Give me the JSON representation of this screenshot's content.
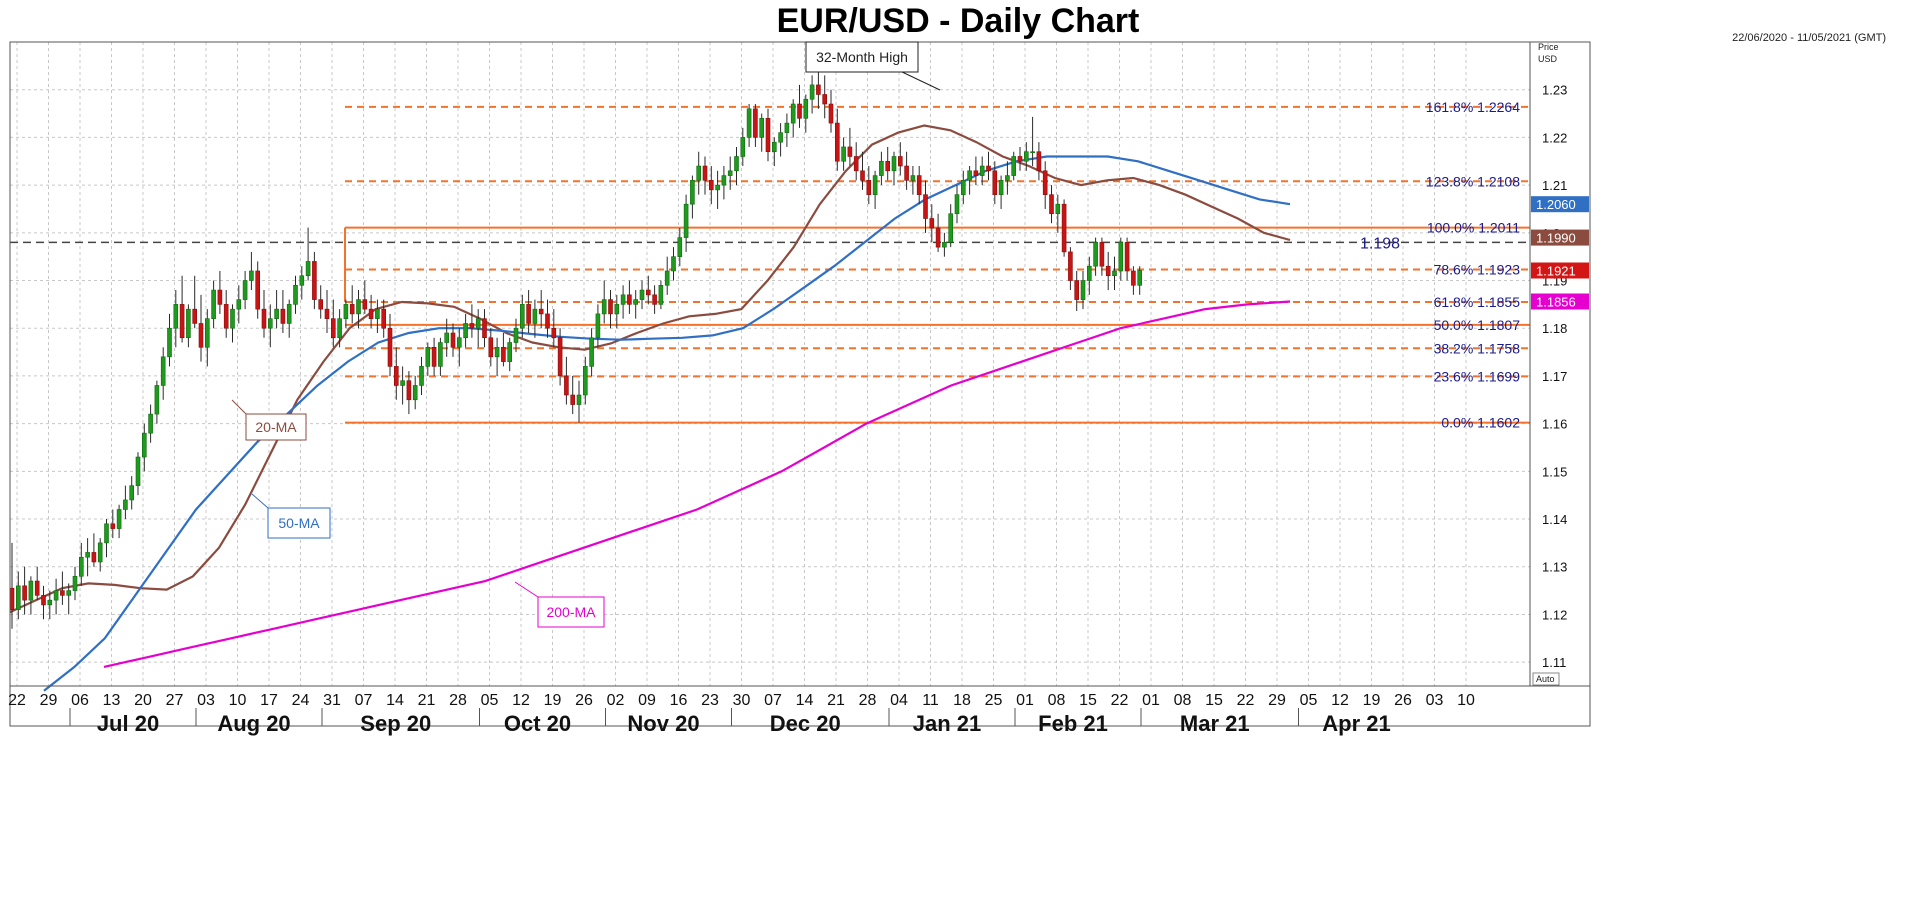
{
  "chart_data": {
    "type": "candlestick",
    "title": "EUR/USD - Daily Chart",
    "date_range": "22/06/2020 - 11/05/2021 (GMT)",
    "y_axis": {
      "label_line1": "Price",
      "label_line2": "USD",
      "ylim": [
        1.105,
        1.24
      ],
      "ticks": [
        "1.23",
        "1.22",
        "1.21",
        "1.2",
        "1.19",
        "1.18",
        "1.17",
        "1.16",
        "1.15",
        "1.14",
        "1.13",
        "1.12",
        "1.11"
      ],
      "tick_values": [
        1.23,
        1.22,
        1.21,
        1.2,
        1.19,
        1.18,
        1.17,
        1.16,
        1.15,
        1.14,
        1.13,
        1.12,
        1.11
      ],
      "auto_label": "Auto"
    },
    "x_axis": {
      "week_labels": [
        "22",
        "29",
        "06",
        "13",
        "20",
        "27",
        "03",
        "10",
        "17",
        "24",
        "31",
        "07",
        "14",
        "21",
        "28",
        "05",
        "12",
        "19",
        "26",
        "02",
        "09",
        "16",
        "23",
        "30",
        "07",
        "14",
        "21",
        "28",
        "04",
        "11",
        "18",
        "25",
        "01",
        "08",
        "15",
        "22",
        "01",
        "08",
        "15",
        "22",
        "29",
        "05",
        "12",
        "19",
        "26",
        "03",
        "10"
      ],
      "month_labels": [
        "Jul 20",
        "Aug 20",
        "Sep 20",
        "Oct 20",
        "Nov 20",
        "Dec 20",
        "Jan 21",
        "Feb 21",
        "Mar 21",
        "Apr 21"
      ]
    },
    "candles": [
      [
        1.1255,
        1.135,
        1.117,
        1.121
      ],
      [
        1.121,
        1.129,
        1.119,
        1.126
      ],
      [
        1.126,
        1.13,
        1.12,
        1.123
      ],
      [
        1.123,
        1.128,
        1.12,
        1.127
      ],
      [
        1.127,
        1.13,
        1.123,
        1.124
      ],
      [
        1.124,
        1.126,
        1.119,
        1.122
      ],
      [
        1.122,
        1.125,
        1.119,
        1.123
      ],
      [
        1.123,
        1.1275,
        1.12,
        1.125
      ],
      [
        1.125,
        1.129,
        1.122,
        1.124
      ],
      [
        1.124,
        1.1265,
        1.12,
        1.125
      ],
      [
        1.125,
        1.13,
        1.123,
        1.128
      ],
      [
        1.128,
        1.135,
        1.126,
        1.132
      ],
      [
        1.132,
        1.136,
        1.128,
        1.133
      ],
      [
        1.133,
        1.137,
        1.13,
        1.131
      ],
      [
        1.131,
        1.136,
        1.129,
        1.135
      ],
      [
        1.135,
        1.14,
        1.132,
        1.139
      ],
      [
        1.139,
        1.142,
        1.136,
        1.138
      ],
      [
        1.138,
        1.143,
        1.136,
        1.142
      ],
      [
        1.142,
        1.147,
        1.14,
        1.144
      ],
      [
        1.144,
        1.149,
        1.142,
        1.147
      ],
      [
        1.147,
        1.154,
        1.145,
        1.153
      ],
      [
        1.153,
        1.16,
        1.15,
        1.158
      ],
      [
        1.158,
        1.164,
        1.156,
        1.162
      ],
      [
        1.162,
        1.169,
        1.16,
        1.168
      ],
      [
        1.168,
        1.176,
        1.165,
        1.174
      ],
      [
        1.174,
        1.183,
        1.172,
        1.18
      ],
      [
        1.18,
        1.188,
        1.176,
        1.185
      ],
      [
        1.185,
        1.191,
        1.177,
        1.178
      ],
      [
        1.178,
        1.185,
        1.176,
        1.184
      ],
      [
        1.184,
        1.191,
        1.18,
        1.181
      ],
      [
        1.181,
        1.187,
        1.173,
        1.176
      ],
      [
        1.176,
        1.184,
        1.172,
        1.182
      ],
      [
        1.182,
        1.19,
        1.18,
        1.188
      ],
      [
        1.188,
        1.192,
        1.183,
        1.185
      ],
      [
        1.185,
        1.188,
        1.178,
        1.18
      ],
      [
        1.18,
        1.185,
        1.177,
        1.184
      ],
      [
        1.184,
        1.189,
        1.181,
        1.186
      ],
      [
        1.186,
        1.192,
        1.184,
        1.19
      ],
      [
        1.19,
        1.196,
        1.188,
        1.192
      ],
      [
        1.192,
        1.194,
        1.182,
        1.184
      ],
      [
        1.184,
        1.188,
        1.178,
        1.18
      ],
      [
        1.18,
        1.185,
        1.176,
        1.182
      ],
      [
        1.182,
        1.188,
        1.18,
        1.184
      ],
      [
        1.184,
        1.188,
        1.179,
        1.181
      ],
      [
        1.181,
        1.186,
        1.178,
        1.185
      ],
      [
        1.185,
        1.191,
        1.183,
        1.189
      ],
      [
        1.189,
        1.193,
        1.186,
        1.191
      ],
      [
        1.191,
        1.2011,
        1.19,
        1.194
      ],
      [
        1.194,
        1.196,
        1.184,
        1.186
      ],
      [
        1.186,
        1.189,
        1.182,
        1.184
      ],
      [
        1.184,
        1.188,
        1.179,
        1.182
      ],
      [
        1.182,
        1.186,
        1.176,
        1.178
      ],
      [
        1.178,
        1.184,
        1.176,
        1.182
      ],
      [
        1.182,
        1.186,
        1.18,
        1.185
      ],
      [
        1.185,
        1.189,
        1.181,
        1.183
      ],
      [
        1.183,
        1.188,
        1.18,
        1.186
      ],
      [
        1.186,
        1.19,
        1.183,
        1.184
      ],
      [
        1.184,
        1.187,
        1.18,
        1.182
      ],
      [
        1.182,
        1.186,
        1.179,
        1.184
      ],
      [
        1.184,
        1.186,
        1.178,
        1.18
      ],
      [
        1.18,
        1.183,
        1.17,
        1.172
      ],
      [
        1.172,
        1.176,
        1.165,
        1.168
      ],
      [
        1.168,
        1.172,
        1.164,
        1.169
      ],
      [
        1.169,
        1.171,
        1.162,
        1.165
      ],
      [
        1.165,
        1.17,
        1.163,
        1.168
      ],
      [
        1.168,
        1.174,
        1.166,
        1.172
      ],
      [
        1.172,
        1.177,
        1.17,
        1.176
      ],
      [
        1.176,
        1.178,
        1.17,
        1.172
      ],
      [
        1.172,
        1.178,
        1.17,
        1.177
      ],
      [
        1.177,
        1.182,
        1.174,
        1.179
      ],
      [
        1.179,
        1.181,
        1.174,
        1.176
      ],
      [
        1.176,
        1.18,
        1.172,
        1.178
      ],
      [
        1.178,
        1.183,
        1.176,
        1.181
      ],
      [
        1.181,
        1.185,
        1.178,
        1.18
      ],
      [
        1.18,
        1.184,
        1.176,
        1.182
      ],
      [
        1.182,
        1.184,
        1.176,
        1.178
      ],
      [
        1.178,
        1.18,
        1.172,
        1.174
      ],
      [
        1.174,
        1.178,
        1.17,
        1.176
      ],
      [
        1.176,
        1.179,
        1.172,
        1.173
      ],
      [
        1.173,
        1.178,
        1.171,
        1.177
      ],
      [
        1.177,
        1.182,
        1.175,
        1.18
      ],
      [
        1.18,
        1.187,
        1.178,
        1.185
      ],
      [
        1.185,
        1.188,
        1.179,
        1.181
      ],
      [
        1.181,
        1.186,
        1.178,
        1.184
      ],
      [
        1.184,
        1.188,
        1.18,
        1.183
      ],
      [
        1.183,
        1.186,
        1.178,
        1.18
      ],
      [
        1.18,
        1.184,
        1.176,
        1.178
      ],
      [
        1.178,
        1.18,
        1.168,
        1.17
      ],
      [
        1.17,
        1.174,
        1.164,
        1.166
      ],
      [
        1.166,
        1.17,
        1.162,
        1.164
      ],
      [
        1.164,
        1.169,
        1.1602,
        1.166
      ],
      [
        1.166,
        1.174,
        1.164,
        1.172
      ],
      [
        1.172,
        1.18,
        1.17,
        1.178
      ],
      [
        1.178,
        1.185,
        1.176,
        1.183
      ],
      [
        1.183,
        1.19,
        1.181,
        1.186
      ],
      [
        1.186,
        1.188,
        1.18,
        1.183
      ],
      [
        1.183,
        1.187,
        1.18,
        1.185
      ],
      [
        1.185,
        1.189,
        1.182,
        1.187
      ],
      [
        1.187,
        1.19,
        1.183,
        1.185
      ],
      [
        1.185,
        1.188,
        1.182,
        1.186
      ],
      [
        1.186,
        1.19,
        1.184,
        1.188
      ],
      [
        1.188,
        1.191,
        1.185,
        1.187
      ],
      [
        1.187,
        1.189,
        1.183,
        1.185
      ],
      [
        1.185,
        1.19,
        1.184,
        1.189
      ],
      [
        1.189,
        1.195,
        1.187,
        1.192
      ],
      [
        1.192,
        1.197,
        1.19,
        1.195
      ],
      [
        1.195,
        1.201,
        1.193,
        1.199
      ],
      [
        1.199,
        1.208,
        1.196,
        1.206
      ],
      [
        1.206,
        1.212,
        1.203,
        1.211
      ],
      [
        1.211,
        1.217,
        1.208,
        1.214
      ],
      [
        1.214,
        1.216,
        1.208,
        1.211
      ],
      [
        1.211,
        1.214,
        1.206,
        1.209
      ],
      [
        1.209,
        1.213,
        1.205,
        1.21
      ],
      [
        1.21,
        1.214,
        1.207,
        1.212
      ],
      [
        1.212,
        1.216,
        1.209,
        1.213
      ],
      [
        1.213,
        1.218,
        1.21,
        1.216
      ],
      [
        1.216,
        1.222,
        1.214,
        1.22
      ],
      [
        1.22,
        1.227,
        1.218,
        1.226
      ],
      [
        1.226,
        1.227,
        1.218,
        1.22
      ],
      [
        1.22,
        1.225,
        1.217,
        1.224
      ],
      [
        1.224,
        1.226,
        1.215,
        1.217
      ],
      [
        1.217,
        1.22,
        1.214,
        1.219
      ],
      [
        1.219,
        1.223,
        1.216,
        1.221
      ],
      [
        1.221,
        1.225,
        1.218,
        1.223
      ],
      [
        1.223,
        1.228,
        1.22,
        1.227
      ],
      [
        1.227,
        1.231,
        1.222,
        1.224
      ],
      [
        1.224,
        1.229,
        1.221,
        1.228
      ],
      [
        1.228,
        1.233,
        1.225,
        1.231
      ],
      [
        1.231,
        1.235,
        1.226,
        1.229
      ],
      [
        1.229,
        1.233,
        1.224,
        1.227
      ],
      [
        1.227,
        1.23,
        1.221,
        1.223
      ],
      [
        1.223,
        1.226,
        1.213,
        1.215
      ],
      [
        1.215,
        1.22,
        1.213,
        1.218
      ],
      [
        1.218,
        1.222,
        1.214,
        1.216
      ],
      [
        1.216,
        1.219,
        1.211,
        1.213
      ],
      [
        1.213,
        1.217,
        1.209,
        1.211
      ],
      [
        1.211,
        1.214,
        1.206,
        1.208
      ],
      [
        1.208,
        1.213,
        1.205,
        1.212
      ],
      [
        1.212,
        1.217,
        1.21,
        1.215
      ],
      [
        1.215,
        1.218,
        1.211,
        1.213
      ],
      [
        1.213,
        1.217,
        1.21,
        1.216
      ],
      [
        1.216,
        1.219,
        1.212,
        1.214
      ],
      [
        1.214,
        1.217,
        1.209,
        1.211
      ],
      [
        1.211,
        1.214,
        1.208,
        1.212
      ],
      [
        1.212,
        1.214,
        1.206,
        1.208
      ],
      [
        1.208,
        1.211,
        1.2,
        1.203
      ],
      [
        1.203,
        1.206,
        1.198,
        1.201
      ],
      [
        1.201,
        1.204,
        1.196,
        1.197
      ],
      [
        1.197,
        1.2,
        1.195,
        1.198
      ],
      [
        1.198,
        1.206,
        1.197,
        1.204
      ],
      [
        1.204,
        1.21,
        1.202,
        1.208
      ],
      [
        1.208,
        1.213,
        1.206,
        1.211
      ],
      [
        1.211,
        1.214,
        1.208,
        1.213
      ],
      [
        1.213,
        1.216,
        1.21,
        1.212
      ],
      [
        1.212,
        1.216,
        1.21,
        1.214
      ],
      [
        1.214,
        1.217,
        1.211,
        1.213
      ],
      [
        1.213,
        1.215,
        1.206,
        1.208
      ],
      [
        1.208,
        1.212,
        1.205,
        1.211
      ],
      [
        1.211,
        1.215,
        1.208,
        1.212
      ],
      [
        1.212,
        1.217,
        1.211,
        1.216
      ],
      [
        1.216,
        1.218,
        1.213,
        1.215
      ],
      [
        1.215,
        1.219,
        1.213,
        1.217
      ],
      [
        1.217,
        1.2243,
        1.214,
        1.217
      ],
      [
        1.217,
        1.219,
        1.211,
        1.213
      ],
      [
        1.213,
        1.215,
        1.205,
        1.208
      ],
      [
        1.208,
        1.21,
        1.202,
        1.204
      ],
      [
        1.204,
        1.208,
        1.2,
        1.206
      ],
      [
        1.206,
        1.207,
        1.195,
        1.196
      ],
      [
        1.196,
        1.197,
        1.188,
        1.19
      ],
      [
        1.19,
        1.192,
        1.1836,
        1.186
      ],
      [
        1.186,
        1.192,
        1.184,
        1.19
      ],
      [
        1.19,
        1.195,
        1.187,
        1.193
      ],
      [
        1.193,
        1.199,
        1.191,
        1.198
      ],
      [
        1.198,
        1.199,
        1.191,
        1.193
      ],
      [
        1.193,
        1.196,
        1.188,
        1.191
      ],
      [
        1.191,
        1.195,
        1.188,
        1.192
      ],
      [
        1.192,
        1.199,
        1.19,
        1.198
      ],
      [
        1.198,
        1.199,
        1.19,
        1.192
      ],
      [
        1.192,
        1.193,
        1.187,
        1.189
      ],
      [
        1.189,
        1.193,
        1.187,
        1.1921
      ]
    ],
    "candle_colors": {
      "up": "#1f9a1f",
      "down": "#c81414",
      "wick": "#2a2a2a"
    },
    "moving_averages": [
      {
        "name": "20-MA",
        "color": "#8b4c3f",
        "values": [
          1.1205,
          1.123,
          1.1255,
          1.1265,
          1.1262,
          1.1255,
          1.1252,
          1.128,
          1.134,
          1.143,
          1.154,
          1.165,
          1.173,
          1.18,
          1.184,
          1.1855,
          1.1852,
          1.1845,
          1.182,
          1.179,
          1.177,
          1.176,
          1.1755,
          1.1768,
          1.179,
          1.181,
          1.1825,
          1.183,
          1.184,
          1.19,
          1.197,
          1.206,
          1.213,
          1.2185,
          1.221,
          1.2225,
          1.2215,
          1.219,
          1.216,
          1.214,
          1.2115,
          1.21,
          1.211,
          1.2115,
          1.21,
          1.208,
          1.2055,
          1.203,
          1.2,
          1.1985
        ]
      },
      {
        "name": "50-MA",
        "color": "#2f6fc4",
        "values": [
          1.104,
          1.109,
          1.115,
          1.124,
          1.133,
          1.142,
          1.149,
          1.156,
          1.162,
          1.168,
          1.173,
          1.177,
          1.179,
          1.18,
          1.18,
          1.1795,
          1.1788,
          1.1782,
          1.1778,
          1.1776,
          1.1778,
          1.178,
          1.1785,
          1.18,
          1.184,
          1.1885,
          1.193,
          1.198,
          1.203,
          1.207,
          1.21,
          1.213,
          1.215,
          1.216,
          1.216,
          1.216,
          1.215,
          1.213,
          1.211,
          1.209,
          1.207,
          1.206
        ]
      },
      {
        "name": "200-MA",
        "color": "#e600cf",
        "values": [
          1.109,
          1.111,
          1.113,
          1.115,
          1.117,
          1.119,
          1.121,
          1.123,
          1.125,
          1.127,
          1.13,
          1.133,
          1.136,
          1.139,
          1.142,
          1.146,
          1.15,
          1.155,
          1.16,
          1.164,
          1.168,
          1.171,
          1.174,
          1.177,
          1.18,
          1.182,
          1.184,
          1.185,
          1.1856
        ]
      }
    ],
    "ma_labels": [
      "20-MA",
      "50-MA",
      "200-MA"
    ],
    "fib_levels": [
      {
        "label": "161.8%",
        "value": "1.2264",
        "v": 1.2264,
        "style": "dash"
      },
      {
        "label": "123.8%",
        "value": "1.2108",
        "v": 1.2108,
        "style": "dash"
      },
      {
        "label": "100.0%",
        "value": "1.2011",
        "v": 1.2011,
        "style": "solid"
      },
      {
        "label": "78.6%",
        "value": "1.1923",
        "v": 1.1923,
        "style": "dash"
      },
      {
        "label": "61.8%",
        "value": "1.1855",
        "v": 1.1855,
        "style": "dash"
      },
      {
        "label": "50.0%",
        "value": "1.1807",
        "v": 1.1807,
        "style": "solid"
      },
      {
        "label": "38.2%",
        "value": "1.1758",
        "v": 1.1758,
        "style": "dash"
      },
      {
        "label": "23.6%",
        "value": "1.1699",
        "v": 1.1699,
        "style": "dash"
      },
      {
        "label": "0.0%",
        "value": "1.1602",
        "v": 1.1602,
        "style": "solid"
      }
    ],
    "fib_color": "#f4722b",
    "fib_text_color": "#1a1a8c",
    "reference_line": {
      "value": "1.198",
      "v": 1.198
    },
    "annotation": {
      "text": "32-Month High"
    },
    "price_tags": [
      {
        "value": "1.2060",
        "v": 1.206,
        "color": "#2f6fc4"
      },
      {
        "value": "1.1990",
        "v": 1.199,
        "color": "#8b4c3f"
      },
      {
        "value": "1.1921",
        "v": 1.1921,
        "color": "#d41515"
      },
      {
        "value": "1.1856",
        "v": 1.1856,
        "color": "#e600cf"
      }
    ],
    "grid": true
  }
}
